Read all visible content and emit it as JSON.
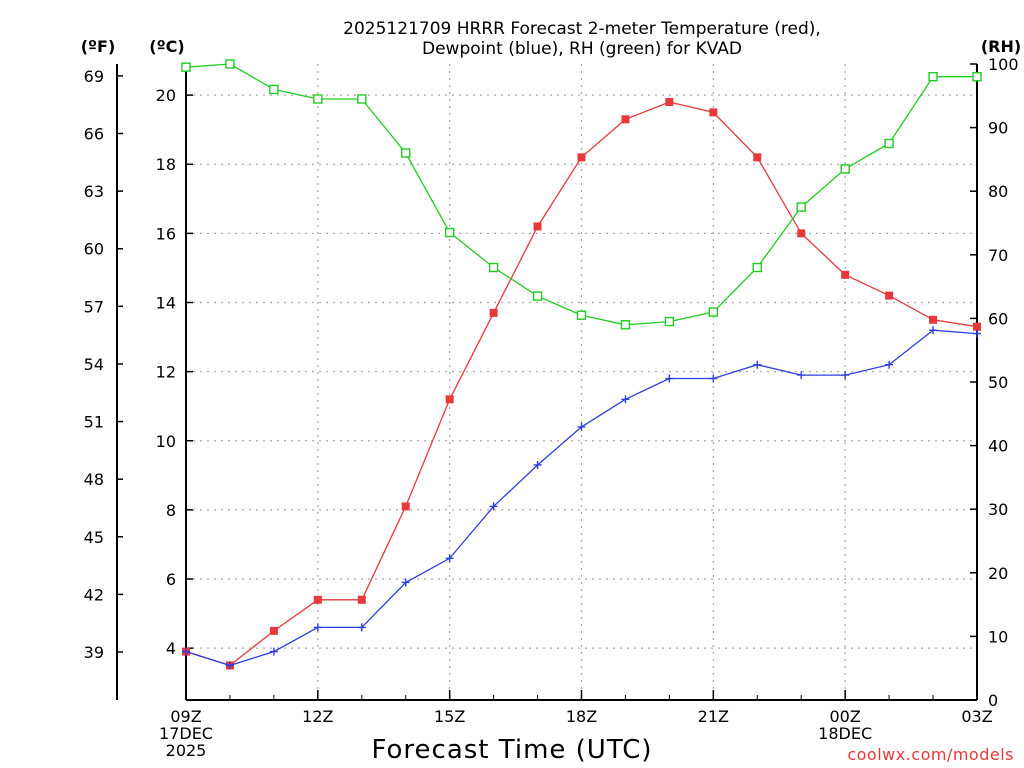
{
  "chart_data": {
    "type": "line",
    "title_lines": [
      "2025121709 HRRR Forecast 2-meter Temperature (red),",
      "Dewpoint (blue), RH (green) for KVAD"
    ],
    "xlabel": "Forecast Time (UTC)",
    "credit": "coolwx.com/models",
    "units": {
      "f": "(ºF)",
      "c": "(ºC)",
      "rh": "(RH)"
    },
    "x_hours": [
      0,
      1,
      2,
      3,
      4,
      5,
      6,
      7,
      8,
      9,
      10,
      11,
      12,
      13,
      14,
      15,
      16,
      17,
      18
    ],
    "xlim": [
      0,
      18
    ],
    "x_ticks": [
      {
        "hour": 0,
        "lines": [
          "09Z",
          "17DEC",
          "2025"
        ]
      },
      {
        "hour": 3,
        "lines": [
          "12Z"
        ]
      },
      {
        "hour": 6,
        "lines": [
          "15Z"
        ]
      },
      {
        "hour": 9,
        "lines": [
          "18Z"
        ]
      },
      {
        "hour": 12,
        "lines": [
          "21Z"
        ]
      },
      {
        "hour": 15,
        "lines": [
          "00Z",
          "18DEC"
        ]
      },
      {
        "hour": 18,
        "lines": [
          "03Z"
        ]
      }
    ],
    "ylim_c": [
      2.5,
      20.9
    ],
    "yticks_c": [
      4,
      6,
      8,
      10,
      12,
      14,
      16,
      18,
      20
    ],
    "yticks_f": [
      39,
      42,
      45,
      48,
      51,
      54,
      57,
      60,
      63,
      66,
      69
    ],
    "ylim_rh": [
      0,
      100
    ],
    "yticks_rh": [
      0,
      10,
      20,
      30,
      40,
      50,
      60,
      70,
      80,
      90,
      100
    ],
    "series": [
      {
        "name": "Temperature",
        "color": "#e8383a",
        "marker": "filled-square",
        "axis": "c",
        "values": [
          3.9,
          3.5,
          4.5,
          5.4,
          5.4,
          8.1,
          11.2,
          13.7,
          16.2,
          18.2,
          19.3,
          19.8,
          19.5,
          18.2,
          16.0,
          14.8,
          14.2,
          13.5,
          13.3
        ]
      },
      {
        "name": "Dewpoint",
        "color": "#2e3fe0",
        "marker": "plus",
        "axis": "c",
        "values": [
          3.9,
          3.5,
          3.9,
          4.6,
          4.6,
          5.9,
          6.6,
          8.1,
          9.3,
          10.4,
          11.2,
          11.8,
          11.8,
          12.2,
          11.9,
          11.9,
          12.2,
          13.2,
          13.1
        ]
      },
      {
        "name": "RH",
        "color": "#22cc22",
        "marker": "open-square",
        "axis": "rh",
        "values": [
          99.5,
          100,
          96,
          94.5,
          94.5,
          86,
          73.5,
          68,
          63.5,
          60.5,
          59,
          59.5,
          61,
          68,
          77.5,
          83.5,
          87.5,
          98,
          98
        ]
      }
    ]
  }
}
